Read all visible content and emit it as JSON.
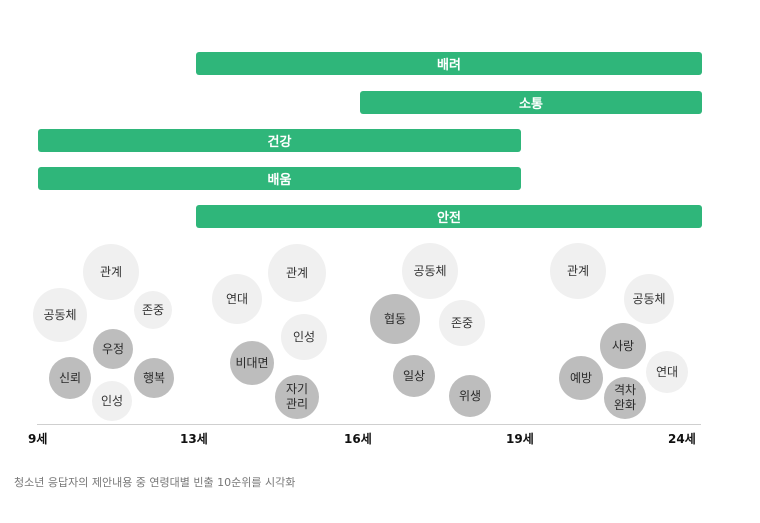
{
  "bars": [
    {
      "label": "배려",
      "from": "13세",
      "to": "24세"
    },
    {
      "label": "소통",
      "from": "16세",
      "to": "24세"
    },
    {
      "label": "건강",
      "from": "9세",
      "to": "19세"
    },
    {
      "label": "배움",
      "from": "9세",
      "to": "19세"
    },
    {
      "label": "안전",
      "from": "13세",
      "to": "24세"
    }
  ],
  "groups": [
    {
      "words": [
        "관계",
        "공동체",
        "존중",
        "우정",
        "신뢰",
        "행복",
        "인성"
      ]
    },
    {
      "words": [
        "연대",
        "관계",
        "인성",
        "비대면",
        "자기\n관리"
      ]
    },
    {
      "words": [
        "공동체",
        "협동",
        "존중",
        "일상",
        "위생"
      ]
    },
    {
      "words": [
        "관계",
        "공동체",
        "사랑",
        "연대",
        "예방",
        "격차\n완화"
      ]
    }
  ],
  "axis": {
    "ticks": [
      "9세",
      "13세",
      "16세",
      "19세",
      "24세"
    ]
  },
  "caption": "청소년 응답자의 제안내용 중 연령대별 빈출 10순위를 시각화",
  "colors": {
    "bar": "#2fb67a",
    "bubble_light": "#f0f0f0",
    "bubble_dark": "#bdbdbd"
  }
}
